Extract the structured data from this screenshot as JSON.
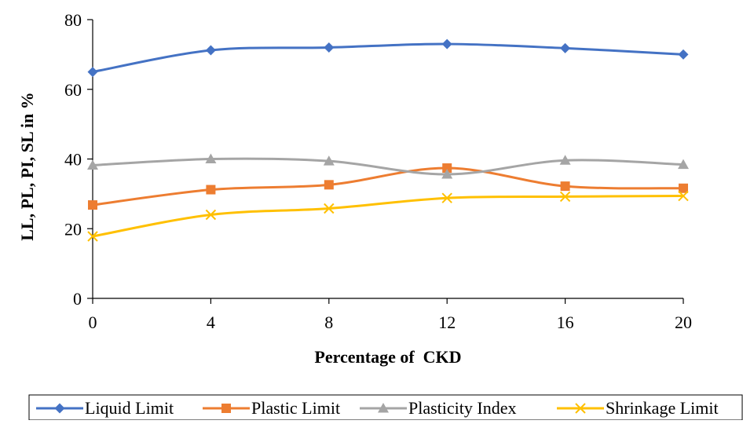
{
  "chart_data": {
    "type": "line",
    "xlabel": "Percentage of  CKD",
    "ylabel": "LL, PL, PI, SL in %",
    "x": [
      0,
      4,
      8,
      12,
      16,
      20
    ],
    "ylim": [
      0,
      80
    ],
    "yticks": [
      0,
      20,
      40,
      60,
      80
    ],
    "grid": false,
    "legend_position": "bottom",
    "series": [
      {
        "name": "Liquid Limit",
        "color": "#4472C4",
        "marker": "diamond",
        "values": [
          65,
          71.2,
          72,
          73,
          71.8,
          70
        ]
      },
      {
        "name": "Plastic Limit",
        "color": "#ED7D31",
        "marker": "square",
        "values": [
          26.8,
          31.2,
          32.6,
          37.4,
          32.2,
          31.6
        ]
      },
      {
        "name": "Plasticity Index",
        "color": "#A5A5A5",
        "marker": "triangle",
        "values": [
          38.2,
          40,
          39.4,
          35.6,
          39.6,
          38.4
        ]
      },
      {
        "name": "Shrinkage Limit",
        "color": "#FFC000",
        "marker": "x",
        "values": [
          17.8,
          24,
          25.8,
          28.8,
          29.2,
          29.4
        ]
      }
    ]
  }
}
